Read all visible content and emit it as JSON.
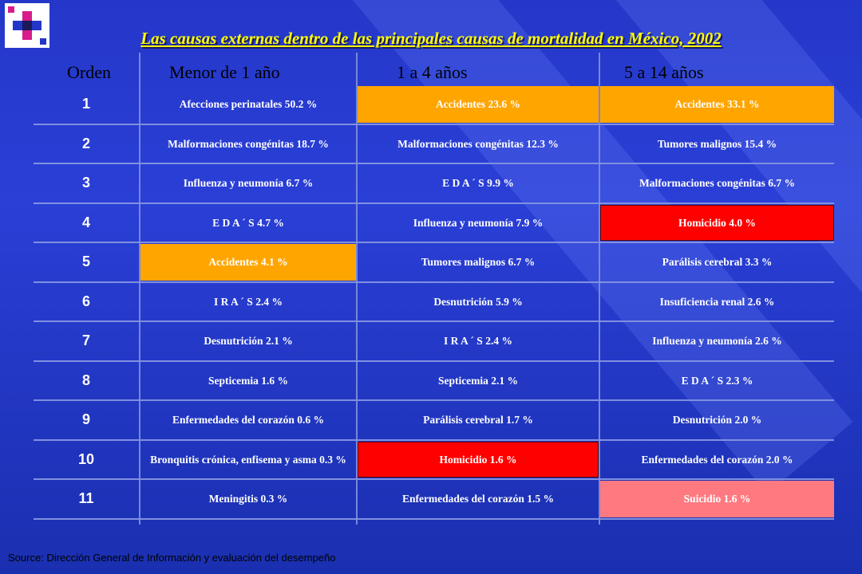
{
  "title": "Las causas externas dentro de las principales causas de mortalidad en México, 2002",
  "headers": {
    "orden": "Orden",
    "col1": "Menor de 1 año",
    "col2": "1 a 4 años",
    "col3": "5 a 14  años"
  },
  "rows": [
    {
      "n": "1",
      "c1": "Afecciones perinatales 50.2 %",
      "c2": "Accidentes 23.6 %",
      "c3": "Accidentes 33.1 %"
    },
    {
      "n": "2",
      "c1": "Malformaciones congénitas 18.7 %",
      "c2": "Malformaciones congénitas 12.3 %",
      "c3": "Tumores malignos 15.4 %"
    },
    {
      "n": "3",
      "c1": "Influenza y neumonía 6.7 %",
      "c2": "E D A ´ S    9.9 %",
      "c3": "Malformaciones congénitas  6.7 %"
    },
    {
      "n": "4",
      "c1": "E D A ´ S    4.7 %",
      "c2": "Influenza y neumonía 7.9 %",
      "c3": "Homicidio 4.0 %"
    },
    {
      "n": "5",
      "c1": "Accidentes 4.1 %",
      "c2": "Tumores malignos 6.7 %",
      "c3": "Parálisis cerebral 3.3 %"
    },
    {
      "n": "6",
      "c1": "I R A ´ S  2.4 %",
      "c2": "Desnutrición 5.9 %",
      "c3": "Insuficiencia renal 2.6 %"
    },
    {
      "n": "7",
      "c1": "Desnutrición 2.1 %",
      "c2": "I R A ´ S   2.4 %",
      "c3": "Influenza y neumonía  2.6 %"
    },
    {
      "n": "8",
      "c1": "Septicemia 1.6 %",
      "c2": "Septicemia  2.1 %",
      "c3": "E D A ´ S    2.3 %"
    },
    {
      "n": "9",
      "c1": "Enfermedades del corazón 0.6 %",
      "c2": "Parálisis cerebral 1.7 %",
      "c3": "Desnutrición 2.0 %"
    },
    {
      "n": "10",
      "c1": "Bronquitis crónica, enfisema y asma 0.3 %",
      "c2": "Homicidio 1.6 %",
      "c3": "Enfermedades del corazón 2.0 %"
    },
    {
      "n": "11",
      "c1": "Meningitis 0.3 %",
      "c2": "Enfermedades del corazón 1.5 %",
      "c3": "Suicidio 1.6 %"
    }
  ],
  "highlights": {
    "accident_color": "#ffa500",
    "homicide_color": "#ff0000",
    "suicide_color": "#ff7a80"
  },
  "source": "Source: Dirección General de Información y evaluación del desempeño"
}
